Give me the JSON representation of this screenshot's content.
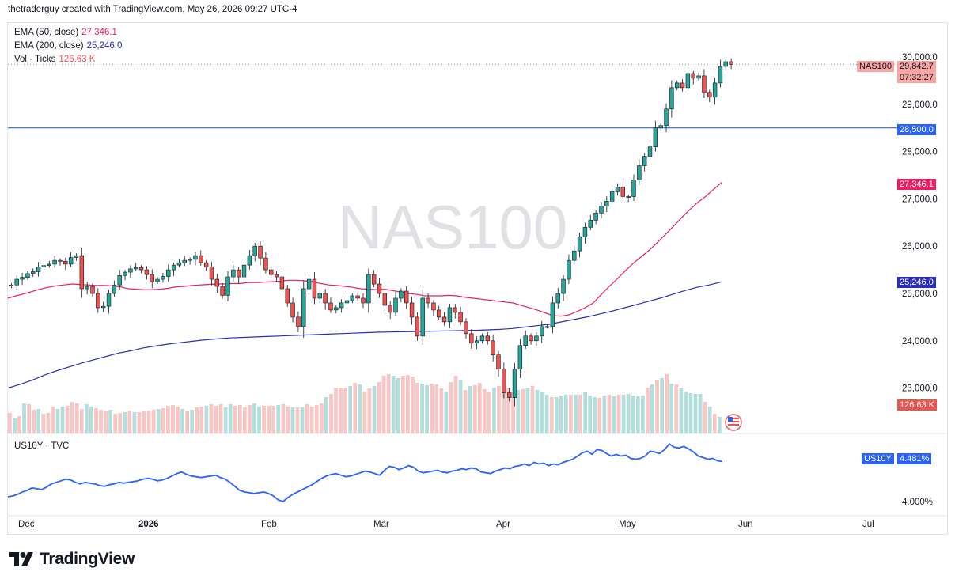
{
  "header": {
    "attribution": "thetraderguy created with TradingView.com, May 26, 2026 09:27 UTC-4"
  },
  "legend": {
    "ema50": {
      "label": "EMA (50, close)",
      "value": "27,346.1"
    },
    "ema200": {
      "label": "EMA (200, close)",
      "value": "25,246.0"
    },
    "vol": {
      "label": "Vol · Ticks",
      "value": "126.63 K"
    }
  },
  "watermark": "NAS100",
  "symbol_tag": {
    "name": "NAS100",
    "price": "29,842.7",
    "countdown": "07:32:27"
  },
  "price_tags": {
    "level": "28,500.0",
    "ema50": "27,346.1",
    "ema200": "25,246.0",
    "volume": "126.63 K"
  },
  "sub_pane": {
    "title": "US10Y · TVC",
    "tag_name": "US10Y",
    "tag_value": "4.481%",
    "axis_tick": "4.000%"
  },
  "footer": {
    "brand": "TradingView"
  },
  "colors": {
    "up": "#26a69a",
    "down": "#ef5350",
    "ema50": "#e91e63",
    "ema200": "#2a2eb8",
    "level": "#2962ff",
    "us10y": "#2962ff",
    "vol_up": "#b2dfdb",
    "vol_down": "#f8c6c4"
  },
  "chart_data": [
    {
      "type": "candlestick",
      "symbol": "NAS100",
      "ylim": [
        22400,
        30300
      ],
      "yticks": [
        "30,000.0",
        "29,000.0",
        "28,000.0",
        "27,000.0",
        "26,000.0",
        "25,000.0",
        "24,000.0",
        "23,000.0"
      ],
      "ytick_values": [
        30000,
        29000,
        28000,
        27000,
        26000,
        25000,
        24000,
        23000
      ],
      "xticks": [
        "Dec",
        "2026",
        "Feb",
        "Mar",
        "Apr",
        "May",
        "Jun",
        "Jul"
      ],
      "horizontal_line": 28500,
      "start_close": 25180,
      "closes": [
        25180,
        25300,
        25340,
        25420,
        25460,
        25560,
        25590,
        25620,
        25700,
        25680,
        25620,
        25760,
        25800,
        25100,
        25150,
        25000,
        24700,
        24730,
        25000,
        25180,
        25380,
        25450,
        25520,
        25550,
        25500,
        25400,
        25250,
        25300,
        25360,
        25500,
        25600,
        25650,
        25700,
        25720,
        25800,
        25650,
        25560,
        25300,
        25150,
        24960,
        25350,
        25500,
        25350,
        25600,
        25800,
        26000,
        25750,
        25500,
        25400,
        25350,
        25100,
        24800,
        24500,
        24300,
        25100,
        25300,
        24900,
        25000,
        24800,
        24650,
        24700,
        24800,
        24850,
        24950,
        24900,
        24800,
        25400,
        25200,
        25000,
        24750,
        24600,
        24900,
        25050,
        24800,
        24500,
        24100,
        24900,
        24800,
        24650,
        24500,
        24400,
        24700,
        24600,
        24400,
        24150,
        23950,
        24000,
        24100,
        24000,
        23700,
        23400,
        22900,
        22800,
        23400,
        23900,
        24100,
        24000,
        24100,
        24300,
        24300,
        24800,
        25000,
        25300,
        25700,
        25900,
        26200,
        26400,
        26550,
        26700,
        26850,
        26950,
        27150,
        27250,
        27050,
        27050,
        27400,
        27700,
        27900,
        28100,
        28500,
        28550,
        28900,
        29350,
        29450,
        29350,
        29650,
        29550,
        29600,
        29250,
        29150,
        29450,
        29800,
        29900,
        29842.7
      ],
      "ema50": [
        24900,
        24950,
        24990,
        25040,
        25090,
        25130,
        25160,
        25180,
        25200,
        25190,
        25180,
        25170,
        25170,
        25160,
        25140,
        25100,
        25090,
        25080,
        25080,
        25090,
        25110,
        25140,
        25150,
        25170,
        25180,
        25190,
        25200,
        25200,
        25210,
        25210,
        25230,
        25230,
        25240,
        25250,
        25260,
        25280,
        25280,
        25270,
        25250,
        25210,
        25180,
        25170,
        25150,
        25130,
        25100,
        25090,
        25080,
        25090,
        25060,
        25030,
        25000,
        24980,
        24950,
        24950,
        24950,
        24960,
        24950,
        24920,
        24900,
        24880,
        24860,
        24840,
        24820,
        24800,
        24750,
        24700,
        24650,
        24590,
        24530,
        24520,
        24550,
        24620,
        24700,
        24800,
        24980,
        25150,
        25310,
        25480,
        25640,
        25780,
        25920,
        26080,
        26250,
        26420,
        26600,
        26770,
        26920,
        27050,
        27200,
        27346.1
      ],
      "ema200": [
        23000,
        23080,
        23170,
        23280,
        23370,
        23450,
        23530,
        23600,
        23670,
        23740,
        23790,
        23850,
        23890,
        23930,
        23960,
        23990,
        24020,
        24040,
        24060,
        24070,
        24080,
        24090,
        24100,
        24110,
        24120,
        24130,
        24140,
        24150,
        24160,
        24170,
        24180,
        24185,
        24190,
        24195,
        24200,
        24205,
        24210,
        24215,
        24220,
        24230,
        24240,
        24260,
        24290,
        24320,
        24350,
        24400,
        24450,
        24500,
        24560,
        24620,
        24690,
        24760,
        24830,
        24900,
        24980,
        25060,
        25130,
        25180,
        25246.0
      ],
      "volume_heights": [
        26,
        19,
        22,
        38,
        37,
        30,
        31,
        25,
        26,
        34,
        31,
        34,
        35,
        40,
        38,
        31,
        37,
        34,
        32,
        30,
        28,
        30,
        25,
        26,
        27,
        29,
        27,
        27,
        28,
        29,
        30,
        31,
        32,
        35,
        36,
        34,
        31,
        28,
        30,
        33,
        34,
        35,
        37,
        35,
        37,
        33,
        37,
        35,
        36,
        33,
        36,
        38,
        34,
        35,
        35,
        35,
        36,
        37,
        34,
        33,
        33,
        33,
        37,
        34,
        36,
        38,
        46,
        50,
        58,
        58,
        58,
        60,
        64,
        62,
        53,
        57,
        60,
        65,
        73,
        75,
        73,
        70,
        73,
        74,
        72,
        64,
        63,
        61,
        63,
        62,
        57,
        53,
        65,
        73,
        68,
        55,
        60,
        61,
        64,
        56,
        53,
        58,
        60,
        61,
        58,
        53,
        55,
        56,
        58,
        60,
        55,
        52,
        49,
        46,
        46,
        48,
        49,
        49,
        49,
        49,
        52,
        48,
        46,
        45,
        48,
        49,
        47,
        49,
        49,
        50,
        48,
        47,
        48,
        58,
        62,
        68,
        70,
        75,
        63,
        62,
        58,
        53,
        51,
        50,
        50,
        40,
        34,
        25,
        21
      ],
      "volume_last_label": "126.63 K"
    },
    {
      "type": "line",
      "symbol": "US10Y",
      "ylim": [
        3.85,
        4.78
      ],
      "yticks": [
        "4.000%"
      ],
      "last": 4.481,
      "values": [
        4.04,
        4.05,
        4.07,
        4.1,
        4.12,
        4.15,
        4.14,
        4.13,
        4.16,
        4.2,
        4.22,
        4.24,
        4.26,
        4.25,
        4.22,
        4.2,
        4.22,
        4.21,
        4.2,
        4.18,
        4.17,
        4.19,
        4.2,
        4.22,
        4.21,
        4.22,
        4.23,
        4.24,
        4.26,
        4.27,
        4.26,
        4.24,
        4.25,
        4.27,
        4.3,
        4.33,
        4.35,
        4.32,
        4.3,
        4.29,
        4.28,
        4.29,
        4.3,
        4.31,
        4.28,
        4.26,
        4.22,
        4.17,
        4.12,
        4.1,
        4.09,
        4.08,
        4.09,
        4.1,
        4.08,
        4.05,
        4.0,
        3.98,
        4.03,
        4.07,
        4.1,
        4.13,
        4.16,
        4.19,
        4.23,
        4.27,
        4.3,
        4.32,
        4.33,
        4.31,
        4.29,
        4.3,
        4.32,
        4.34,
        4.36,
        4.35,
        4.33,
        4.31,
        4.37,
        4.42,
        4.41,
        4.38,
        4.4,
        4.43,
        4.41,
        4.36,
        4.34,
        4.35,
        4.36,
        4.37,
        4.35,
        4.34,
        4.36,
        4.37,
        4.39,
        4.38,
        4.4,
        4.39,
        4.35,
        4.34,
        4.33,
        4.36,
        4.38,
        4.4,
        4.39,
        4.42,
        4.43,
        4.45,
        4.43,
        4.47,
        4.45,
        4.46,
        4.43,
        4.45,
        4.44,
        4.47,
        4.49,
        4.51,
        4.55,
        4.59,
        4.61,
        4.57,
        4.63,
        4.62,
        4.58,
        4.55,
        4.57,
        4.55,
        4.56,
        4.52,
        4.51,
        4.52,
        4.55,
        4.61,
        4.6,
        4.58,
        4.63,
        4.7,
        4.66,
        4.65,
        4.67,
        4.64,
        4.6,
        4.55,
        4.53,
        4.51,
        4.52,
        4.49,
        4.481
      ]
    }
  ]
}
